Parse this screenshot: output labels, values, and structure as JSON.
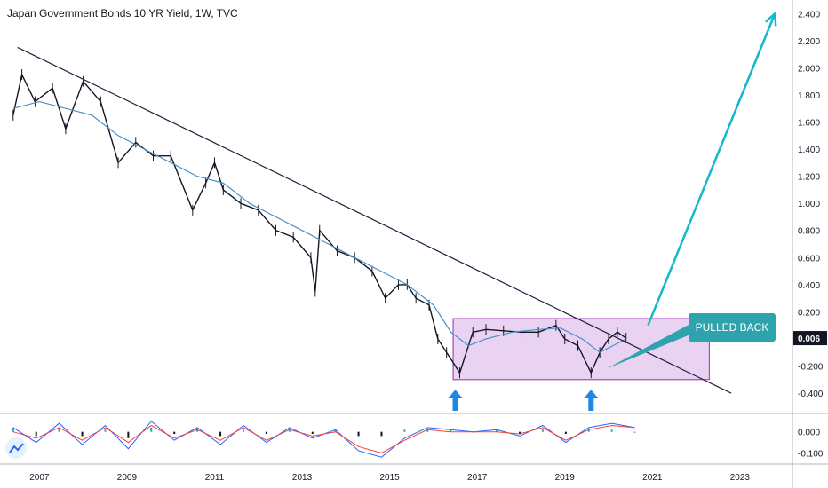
{
  "chart_data": {
    "type": "line",
    "title": "Japan Government Bonds 10 YR Yield, 1W, TVC",
    "series": [
      {
        "x": [
          2006.4,
          2006.6,
          2006.9,
          2007.3,
          2007.6,
          2008.0,
          2008.4,
          2008.8,
          2009.2,
          2009.6,
          2010.0,
          2010.5,
          2010.8,
          2011.0,
          2011.2,
          2011.6,
          2012.0,
          2012.4,
          2012.8,
          2013.2,
          2013.3,
          2013.4,
          2013.8,
          2014.2,
          2014.6,
          2014.9,
          2015.2,
          2015.4,
          2015.6,
          2015.9,
          2016.1,
          2016.3,
          2016.6,
          2016.9,
          2017.2,
          2017.6,
          2018.0,
          2018.4,
          2018.8,
          2019.0,
          2019.3,
          2019.6,
          2019.8,
          2020.0,
          2020.2,
          2020.4
        ],
        "values": [
          1.65,
          1.95,
          1.75,
          1.85,
          1.55,
          1.9,
          1.75,
          1.3,
          1.45,
          1.35,
          1.35,
          0.95,
          1.15,
          1.3,
          1.1,
          1.0,
          0.95,
          0.8,
          0.75,
          0.6,
          0.35,
          0.8,
          0.65,
          0.6,
          0.5,
          0.3,
          0.4,
          0.4,
          0.3,
          0.25,
          0.0,
          -0.1,
          -0.25,
          0.05,
          0.07,
          0.06,
          0.05,
          0.05,
          0.1,
          0.0,
          -0.05,
          -0.25,
          -0.1,
          0.0,
          0.05,
          0.006
        ]
      },
      {
        "x": [
          2006.4,
          2007.0,
          2007.6,
          2008.2,
          2008.8,
          2009.4,
          2010.0,
          2010.6,
          2011.2,
          2011.8,
          2012.4,
          2013.0,
          2013.6,
          2014.2,
          2014.8,
          2015.4,
          2016.0,
          2016.4,
          2016.8,
          2017.2,
          2017.8,
          2018.4,
          2018.9,
          2019.4,
          2019.8,
          2020.1,
          2020.4
        ],
        "values": [
          1.7,
          1.75,
          1.7,
          1.65,
          1.5,
          1.4,
          1.3,
          1.2,
          1.15,
          1.0,
          0.9,
          0.8,
          0.7,
          0.6,
          0.5,
          0.4,
          0.25,
          0.05,
          -0.05,
          0.0,
          0.05,
          0.07,
          0.08,
          0.0,
          -0.1,
          -0.05,
          0.0
        ]
      }
    ],
    "current_value": "0.006",
    "y_ticks": [
      "2.400",
      "2.200",
      "2.000",
      "1.800",
      "1.600",
      "1.400",
      "1.200",
      "1.000",
      "0.800",
      "0.600",
      "0.400",
      "0.200",
      "-0.200",
      "-0.400"
    ],
    "x_ticks": [
      "2007",
      "2009",
      "2011",
      "2013",
      "2015",
      "2017",
      "2019",
      "2021",
      "2023"
    ],
    "ylim": [
      -0.55,
      2.5
    ],
    "xlim": [
      2006.1,
      2024.2
    ],
    "trendline": {
      "x": [
        2006.5,
        2022.8
      ],
      "values": [
        2.15,
        -0.4
      ]
    },
    "range_box": {
      "x": [
        2016.45,
        2022.3
      ],
      "values": [
        0.15,
        -0.3
      ]
    },
    "arrow": {
      "x": [
        2020.9,
        2023.8
      ],
      "values": [
        0.1,
        2.4
      ]
    },
    "bottom_arrows_x": [
      2016.5,
      2019.6
    ],
    "annotation": "PULLED BACK",
    "indicator": {
      "y_ticks": [
        "0.000",
        "-0.100"
      ],
      "ylim": [
        -0.14,
        0.07
      ],
      "macd": [
        0.02,
        -0.05,
        0.04,
        -0.06,
        0.03,
        -0.08,
        0.05,
        -0.04,
        0.02,
        -0.06,
        0.03,
        -0.05,
        0.02,
        -0.03,
        0.01,
        -0.09,
        -0.12,
        -0.03,
        0.02,
        0.01,
        0.0,
        0.01,
        -0.02,
        0.03,
        -0.05,
        0.02,
        0.04,
        0.02
      ],
      "signal": [
        0.0,
        -0.03,
        0.02,
        -0.04,
        0.02,
        -0.05,
        0.03,
        -0.03,
        0.01,
        -0.04,
        0.02,
        -0.04,
        0.01,
        -0.02,
        0.0,
        -0.07,
        -0.1,
        -0.04,
        0.01,
        0.0,
        0.0,
        0.0,
        -0.01,
        0.02,
        -0.04,
        0.01,
        0.03,
        0.02
      ]
    },
    "colors": {
      "price": "#131722",
      "ma": "#4a8fc4",
      "trend": "#1e1e3c",
      "box_fill": "#ead3f2",
      "box_stroke": "#9c27b0",
      "arrow": "#14b8c8",
      "annotation_bg": "#2fa3ad",
      "marker_arrow": "#1e88e5",
      "macd": "#2962ff",
      "signal": "#f44336",
      "label_bg": "#131722"
    }
  }
}
